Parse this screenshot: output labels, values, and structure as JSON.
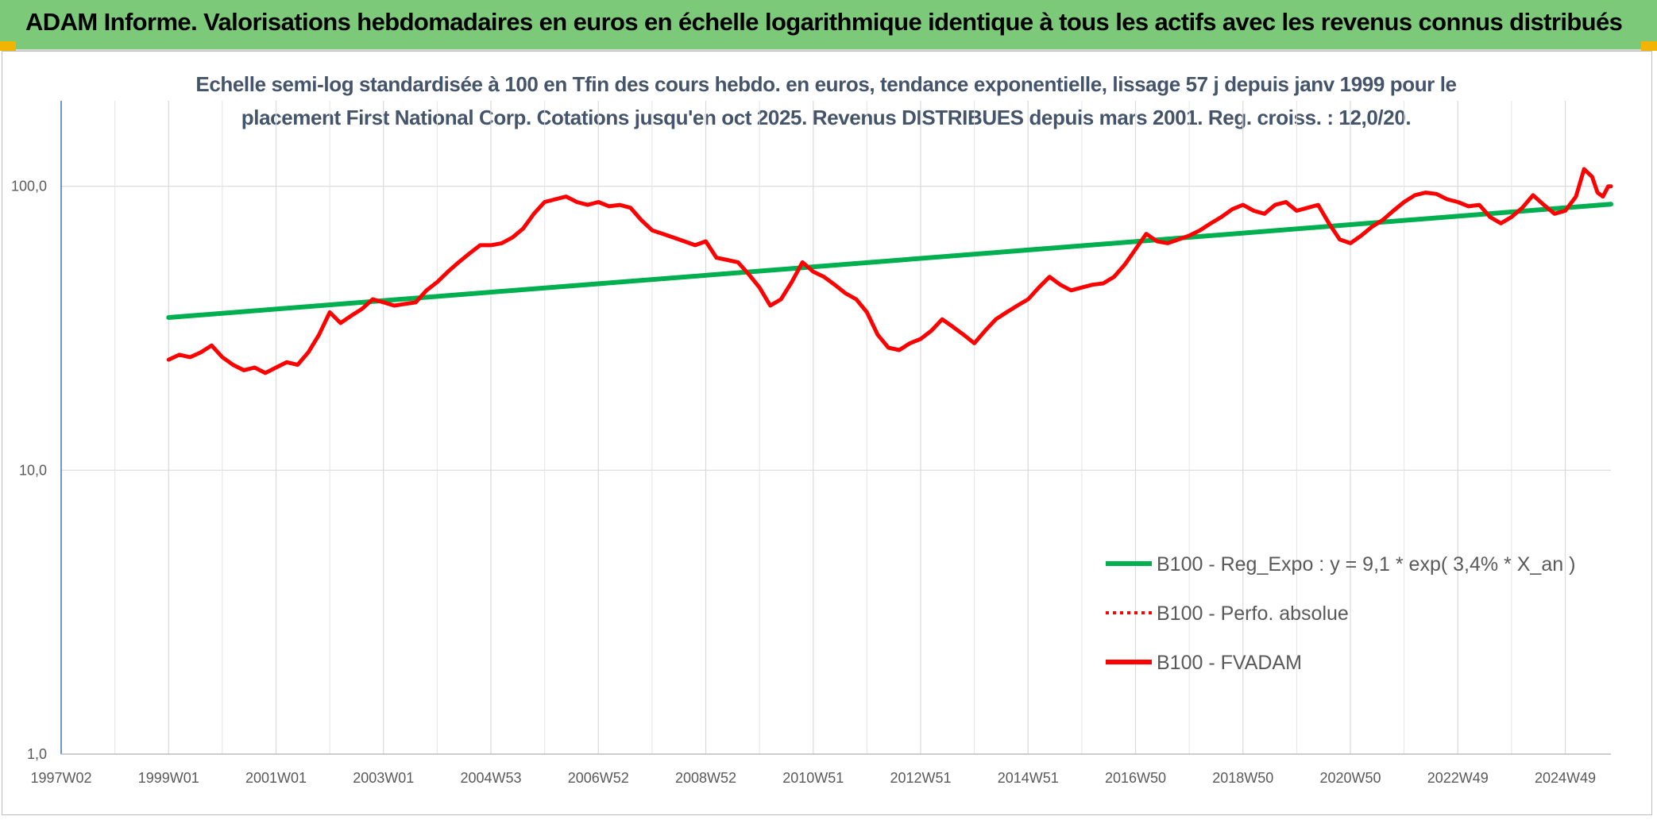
{
  "banner": {
    "title": "ADAM Informe. Valorisations hebdomadaires en euros en échelle logarithmique identique à tous les actifs avec les revenus connus distribués",
    "color": "#7dc97a"
  },
  "chart_data": {
    "type": "line",
    "title_line1": "Echelle semi-log standardisée à 100 en Tfin des cours hebdo. en euros, tendance exponentielle, lissage 57 j depuis janv 1999 pour le",
    "title_line2": "placement First National Corp. Cotations jusqu'en oct 2025. Revenus DISTRIBUES depuis mars 2001. Reg. croiss. : 12,0/20.",
    "y_scale": "log",
    "ylim": [
      1,
      200
    ],
    "y_ticks": [
      {
        "value": 1,
        "label": "1,0"
      },
      {
        "value": 10,
        "label": "10,0"
      },
      {
        "value": 100,
        "label": "100,0"
      }
    ],
    "x_ticks": [
      {
        "t": 1997.0,
        "label": "1997W02"
      },
      {
        "t": 1999.0,
        "label": "1999W01"
      },
      {
        "t": 2001.0,
        "label": "2001W01"
      },
      {
        "t": 2003.0,
        "label": "2003W01"
      },
      {
        "t": 2005.0,
        "label": "2004W53"
      },
      {
        "t": 2007.0,
        "label": "2006W52"
      },
      {
        "t": 2009.0,
        "label": "2008W52"
      },
      {
        "t": 2011.0,
        "label": "2010W51"
      },
      {
        "t": 2013.0,
        "label": "2012W51"
      },
      {
        "t": 2015.0,
        "label": "2014W51"
      },
      {
        "t": 2017.0,
        "label": "2016W50"
      },
      {
        "t": 2019.0,
        "label": "2018W50"
      },
      {
        "t": 2021.0,
        "label": "2020W50"
      },
      {
        "t": 2023.0,
        "label": "2022W49"
      },
      {
        "t": 2025.0,
        "label": "2024W49"
      }
    ],
    "xlim": [
      1997.0,
      2025.85
    ],
    "grid": true,
    "legend_position": "bottom-right",
    "series": [
      {
        "name": "B100 - Reg_Expo : y = 9,1 * exp( 3,4% *  X_an )",
        "color": "#00b050",
        "style": "solid",
        "points": [
          [
            1999.0,
            34.5
          ],
          [
            2025.85,
            86.5
          ]
        ]
      },
      {
        "name": "B100 - Perfo. absolue",
        "color": "#ff0000",
        "style": "dotted",
        "points": []
      },
      {
        "name": "B100 - FVADAM",
        "color": "#ff0000",
        "style": "solid",
        "points": [
          [
            1999.0,
            24.5
          ],
          [
            1999.2,
            25.5
          ],
          [
            1999.4,
            25.0
          ],
          [
            1999.6,
            26.0
          ],
          [
            1999.8,
            27.5
          ],
          [
            2000.0,
            25.0
          ],
          [
            2000.2,
            23.5
          ],
          [
            2000.4,
            22.5
          ],
          [
            2000.6,
            23.0
          ],
          [
            2000.8,
            22.0
          ],
          [
            2001.0,
            23.0
          ],
          [
            2001.2,
            24.0
          ],
          [
            2001.4,
            23.5
          ],
          [
            2001.6,
            26.0
          ],
          [
            2001.8,
            30.0
          ],
          [
            2002.0,
            36.0
          ],
          [
            2002.2,
            33.0
          ],
          [
            2002.4,
            35.0
          ],
          [
            2002.6,
            37.0
          ],
          [
            2002.8,
            40.0
          ],
          [
            2003.0,
            39.0
          ],
          [
            2003.2,
            38.0
          ],
          [
            2003.4,
            38.5
          ],
          [
            2003.6,
            39.0
          ],
          [
            2003.8,
            43.0
          ],
          [
            2004.0,
            46.0
          ],
          [
            2004.2,
            50.0
          ],
          [
            2004.4,
            54.0
          ],
          [
            2004.6,
            58.0
          ],
          [
            2004.8,
            62.0
          ],
          [
            2005.0,
            62.0
          ],
          [
            2005.2,
            63.0
          ],
          [
            2005.4,
            66.0
          ],
          [
            2005.6,
            71.0
          ],
          [
            2005.8,
            80.0
          ],
          [
            2006.0,
            88.0
          ],
          [
            2006.2,
            90.0
          ],
          [
            2006.4,
            92.0
          ],
          [
            2006.6,
            88.0
          ],
          [
            2006.8,
            86.0
          ],
          [
            2007.0,
            88.0
          ],
          [
            2007.2,
            85.0
          ],
          [
            2007.4,
            86.0
          ],
          [
            2007.6,
            84.0
          ],
          [
            2007.8,
            76.0
          ],
          [
            2008.0,
            70.0
          ],
          [
            2008.2,
            68.0
          ],
          [
            2008.4,
            66.0
          ],
          [
            2008.6,
            64.0
          ],
          [
            2008.8,
            62.0
          ],
          [
            2009.0,
            64.0
          ],
          [
            2009.2,
            56.0
          ],
          [
            2009.4,
            55.0
          ],
          [
            2009.6,
            54.0
          ],
          [
            2009.8,
            49.0
          ],
          [
            2010.0,
            44.0
          ],
          [
            2010.2,
            38.0
          ],
          [
            2010.4,
            40.0
          ],
          [
            2010.6,
            46.0
          ],
          [
            2010.8,
            54.0
          ],
          [
            2011.0,
            50.0
          ],
          [
            2011.2,
            48.0
          ],
          [
            2011.4,
            45.0
          ],
          [
            2011.6,
            42.0
          ],
          [
            2011.8,
            40.0
          ],
          [
            2012.0,
            36.0
          ],
          [
            2012.2,
            30.0
          ],
          [
            2012.4,
            27.0
          ],
          [
            2012.6,
            26.5
          ],
          [
            2012.8,
            28.0
          ],
          [
            2013.0,
            29.0
          ],
          [
            2013.2,
            31.0
          ],
          [
            2013.4,
            34.0
          ],
          [
            2013.6,
            32.0
          ],
          [
            2013.8,
            30.0
          ],
          [
            2014.0,
            28.0
          ],
          [
            2014.2,
            31.0
          ],
          [
            2014.4,
            34.0
          ],
          [
            2014.6,
            36.0
          ],
          [
            2014.8,
            38.0
          ],
          [
            2015.0,
            40.0
          ],
          [
            2015.2,
            44.0
          ],
          [
            2015.4,
            48.0
          ],
          [
            2015.6,
            45.0
          ],
          [
            2015.8,
            43.0
          ],
          [
            2016.0,
            44.0
          ],
          [
            2016.2,
            45.0
          ],
          [
            2016.4,
            45.5
          ],
          [
            2016.6,
            48.0
          ],
          [
            2016.8,
            53.0
          ],
          [
            2017.0,
            60.0
          ],
          [
            2017.2,
            68.0
          ],
          [
            2017.4,
            64.0
          ],
          [
            2017.6,
            63.0
          ],
          [
            2017.8,
            65.0
          ],
          [
            2018.0,
            67.0
          ],
          [
            2018.2,
            70.0
          ],
          [
            2018.4,
            74.0
          ],
          [
            2018.6,
            78.0
          ],
          [
            2018.8,
            83.0
          ],
          [
            2019.0,
            86.0
          ],
          [
            2019.2,
            82.0
          ],
          [
            2019.4,
            80.0
          ],
          [
            2019.6,
            86.0
          ],
          [
            2019.8,
            88.0
          ],
          [
            2020.0,
            82.0
          ],
          [
            2020.2,
            84.0
          ],
          [
            2020.4,
            86.0
          ],
          [
            2020.6,
            74.0
          ],
          [
            2020.8,
            65.0
          ],
          [
            2021.0,
            63.0
          ],
          [
            2021.2,
            67.0
          ],
          [
            2021.4,
            72.0
          ],
          [
            2021.6,
            76.0
          ],
          [
            2021.8,
            82.0
          ],
          [
            2022.0,
            88.0
          ],
          [
            2022.2,
            93.0
          ],
          [
            2022.4,
            95.0
          ],
          [
            2022.6,
            94.0
          ],
          [
            2022.8,
            90.0
          ],
          [
            2023.0,
            88.0
          ],
          [
            2023.2,
            85.0
          ],
          [
            2023.4,
            86.0
          ],
          [
            2023.6,
            78.0
          ],
          [
            2023.8,
            74.0
          ],
          [
            2024.0,
            78.0
          ],
          [
            2024.2,
            84.0
          ],
          [
            2024.4,
            93.0
          ],
          [
            2024.6,
            86.0
          ],
          [
            2024.8,
            80.0
          ],
          [
            2025.0,
            82.0
          ],
          [
            2025.2,
            92.0
          ],
          [
            2025.35,
            115.0
          ],
          [
            2025.5,
            108.0
          ],
          [
            2025.6,
            95.0
          ],
          [
            2025.7,
            92.0
          ],
          [
            2025.8,
            100.0
          ],
          [
            2025.85,
            100.0
          ]
        ]
      }
    ]
  }
}
